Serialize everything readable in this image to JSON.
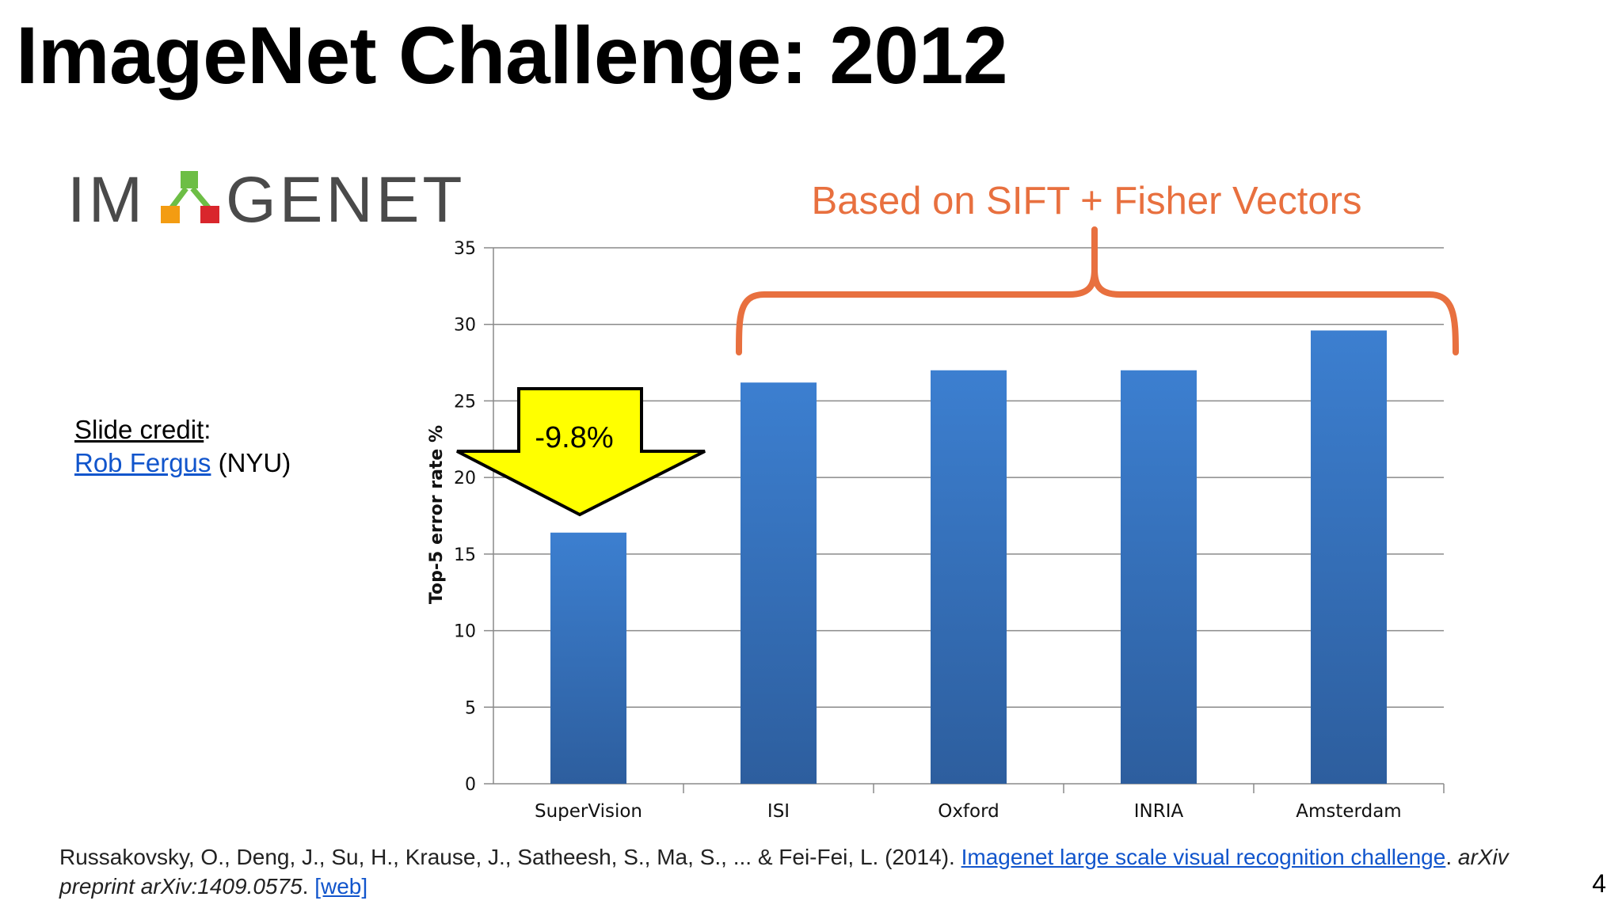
{
  "slide": {
    "title": "ImageNet Challenge: 2012",
    "page_number": "4"
  },
  "logo": {
    "text_left": "IM",
    "text_right": "GENET",
    "colors": {
      "green": "#6dbe45",
      "orange": "#f39c12",
      "red": "#d9262c",
      "gray": "#4a4a4a"
    }
  },
  "credit": {
    "label": "Slide credit",
    "colon": ":",
    "name": "Rob Fergus",
    "affiliation": "(NYU)"
  },
  "annotation": {
    "bracket_label": "Based on SIFT + Fisher Vectors",
    "arrow_label": "-9.8%",
    "bracket_color": "#e8703f",
    "arrow_color": "#ffff00"
  },
  "chart_data": {
    "type": "bar",
    "categories": [
      "SuperVision",
      "ISI",
      "Oxford",
      "INRIA",
      "Amsterdam"
    ],
    "values": [
      16.4,
      26.2,
      27.0,
      27.0,
      29.6
    ],
    "ylabel": "Top-5 error rate %",
    "ylim": [
      0,
      35
    ],
    "yticks": [
      "0",
      "5",
      "10",
      "15",
      "20",
      "25",
      "30",
      "35"
    ],
    "grid": true,
    "bar_color": "#3a78c4"
  },
  "citation": {
    "authors": "Russakovsky, O., Deng, J., Su, H., Krause, J., Satheesh, S., Ma, S., ... & Fei-Fei, L. (2014). ",
    "paper_title": "Imagenet large scale visual recognition challenge",
    "period": ". ",
    "journal": "arXiv preprint arXiv:1409.0575",
    "period2": ". ",
    "web_link": "[web]"
  }
}
